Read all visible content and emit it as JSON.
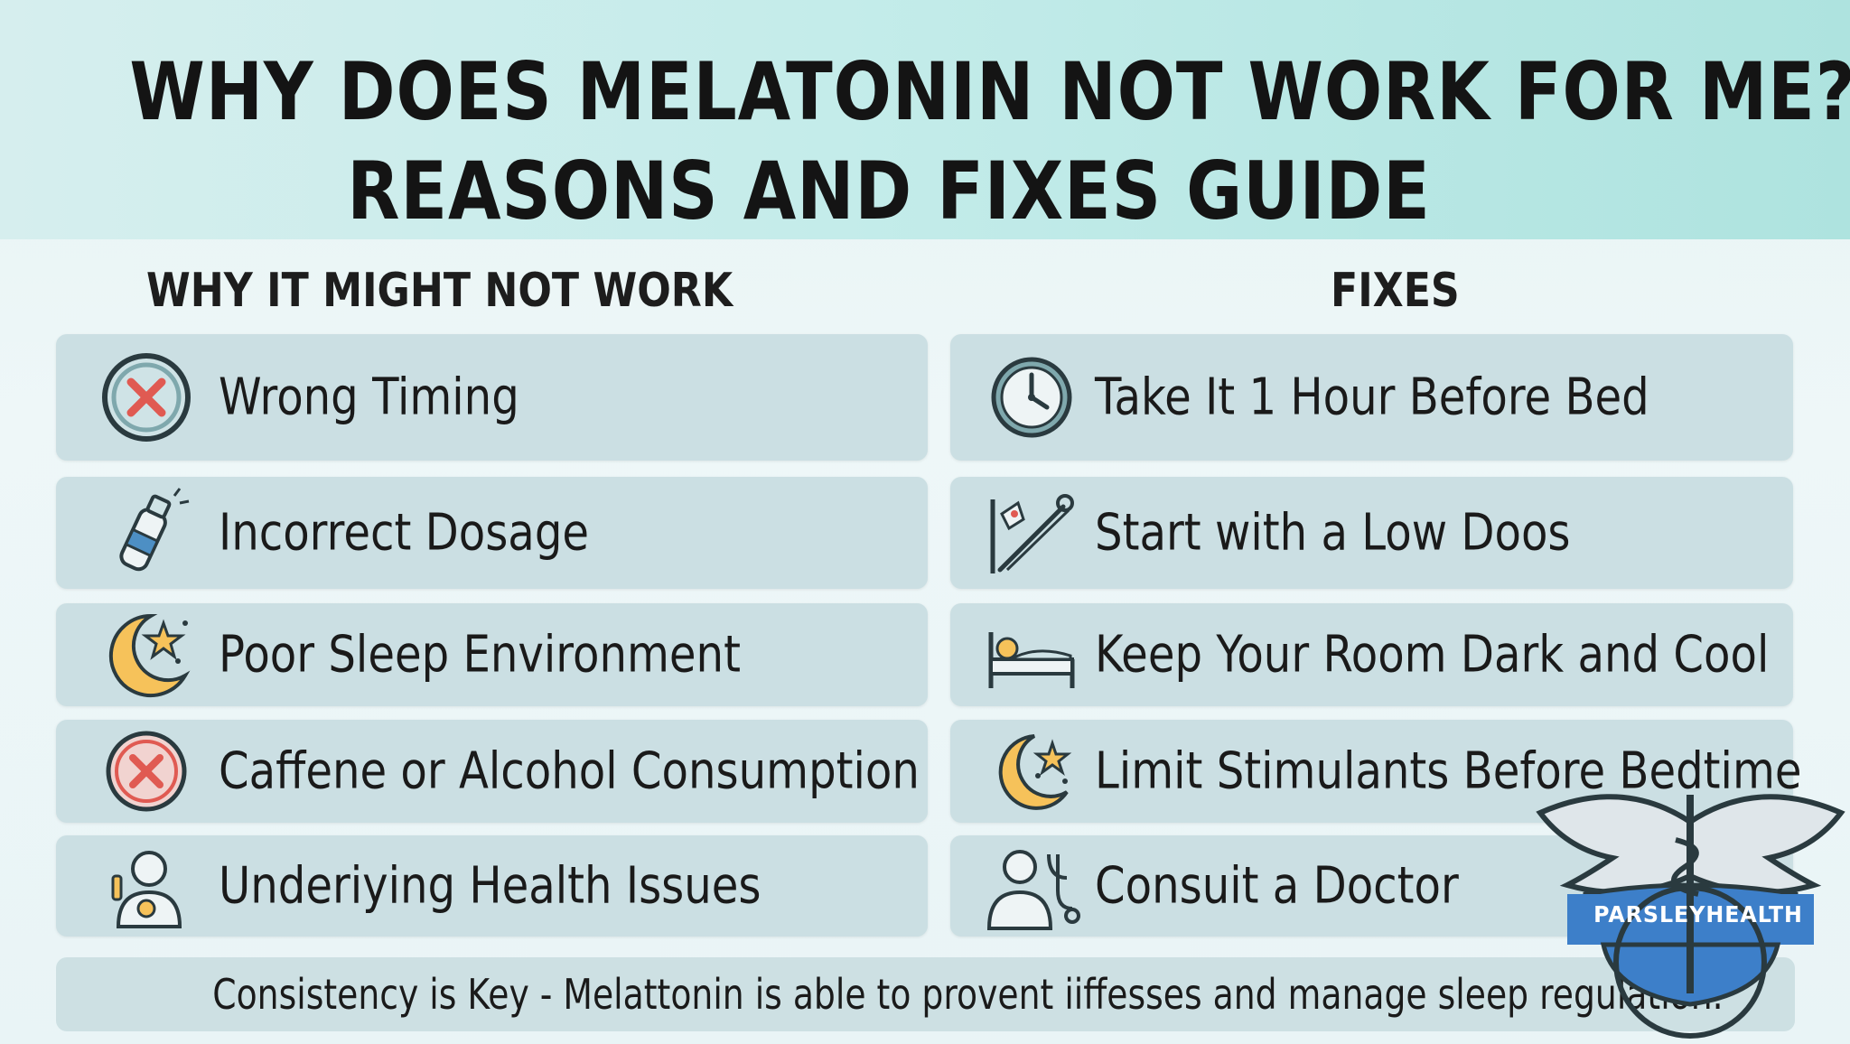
{
  "title": {
    "line1": "WHY DOES MELATONIN NOT WORK FOR ME?",
    "line2": "REASONS AND FIXES GUIDE"
  },
  "left_column": {
    "heading": "WHY IT MIGHT NOT WORK",
    "items": [
      {
        "label": "Wrong Timing",
        "icon": "x-circle-icon"
      },
      {
        "label": "Incorrect Dosage",
        "icon": "bottle-icon"
      },
      {
        "label": "Poor Sleep Environment",
        "icon": "moon-stars-icon"
      },
      {
        "label": "Caffene or Alcohol Consumption",
        "icon": "x-circle-icon"
      },
      {
        "label": "Underiying Health Issues",
        "icon": "person-icon"
      }
    ]
  },
  "right_column": {
    "heading": "FIXES",
    "items": [
      {
        "label": "Take It 1 Hour Before Bed",
        "icon": "clock-icon"
      },
      {
        "label": "Start with a Low Doos",
        "icon": "syringe-icon"
      },
      {
        "label": "Keep Your Room Dark and Cool",
        "icon": "bed-icon"
      },
      {
        "label": "Limit Stimulants Before Bedtime",
        "icon": "moon-stars-icon"
      },
      {
        "label": "Consuit a Doctor",
        "icon": "doctor-icon"
      }
    ]
  },
  "footer": {
    "text": "Consistency is Key - Melattonin is able to provent iiffesses and manage sleep regulation."
  },
  "logo": {
    "name": "PARSLEYHEALTH"
  },
  "colors": {
    "row_bg": "#cbdfe3",
    "header_bg": "#c4ecea",
    "icon_red": "#e05a52",
    "icon_teal": "#7fa8ad",
    "moon_yellow": "#f6c25a",
    "logo_blue": "#3d7fc9"
  }
}
